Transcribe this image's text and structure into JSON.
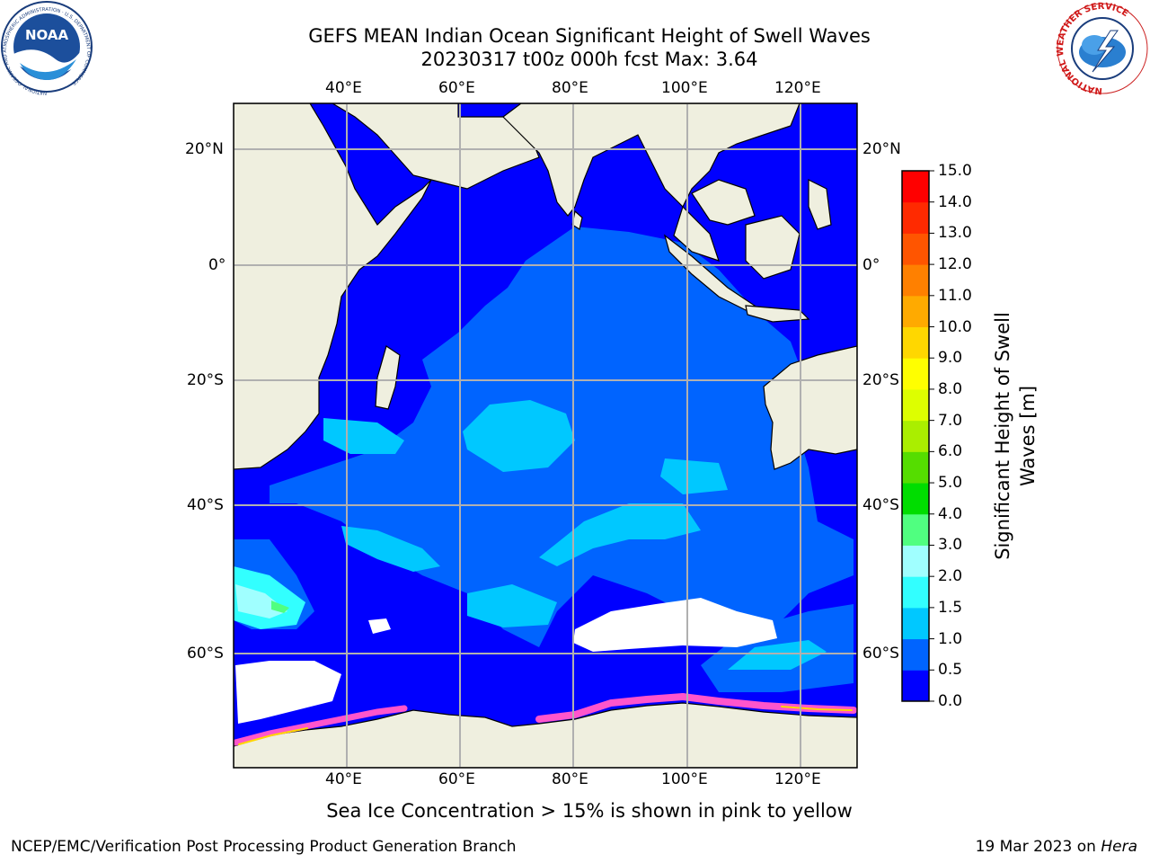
{
  "title": {
    "line1": "GEFS MEAN Indian Ocean Significant Height of Swell Waves",
    "line2": "20230317 t00z 000h fcst   Max: 3.64"
  },
  "subtitle": "Sea Ice Concentration > 15% is shown in pink to yellow",
  "footer": {
    "left": "NCEP/EMC/Verification Post Processing Product Generation Branch",
    "right_date": "19 Mar 2023 on ",
    "right_host": "Hera"
  },
  "map": {
    "lon_labels": [
      "40°E",
      "60°E",
      "80°E",
      "100°E",
      "120°E"
    ],
    "lat_labels": [
      "20°N",
      "0°",
      "20°S",
      "40°S",
      "60°S"
    ],
    "colors": {
      "land": "#efefdf",
      "coast": "#000000",
      "grid": "#b0b0b0",
      "no_data": "#ffffff",
      "sea_ice": "#ff55cc"
    }
  },
  "colorbar": {
    "label_line1": "Significant Height of Swell",
    "label_line2": "Waves [m]",
    "ticks": [
      "0.0",
      "0.5",
      "1.0",
      "1.5",
      "2.0",
      "3.0",
      "4.0",
      "5.0",
      "6.0",
      "7.0",
      "8.0",
      "9.0",
      "10.0",
      "11.0",
      "12.0",
      "13.0",
      "14.0",
      "15.0"
    ],
    "colors": [
      "#0000ff",
      "#0064ff",
      "#00c8ff",
      "#32ffff",
      "#a0ffff",
      "#50ff80",
      "#00dd00",
      "#55dd00",
      "#aaee00",
      "#ddff00",
      "#ffff00",
      "#ffd700",
      "#ffaa00",
      "#ff8000",
      "#ff5500",
      "#ff2a00",
      "#ff0000"
    ]
  },
  "logos": {
    "noaa_text": "NOAA",
    "noaa_ring": "NATIONAL OCEANIC AND ATMOSPHERIC ADMINISTRATION · U.S. DEPARTMENT OF COMMERCE",
    "nws_ring": "NATIONAL WEATHER SERVICE"
  }
}
